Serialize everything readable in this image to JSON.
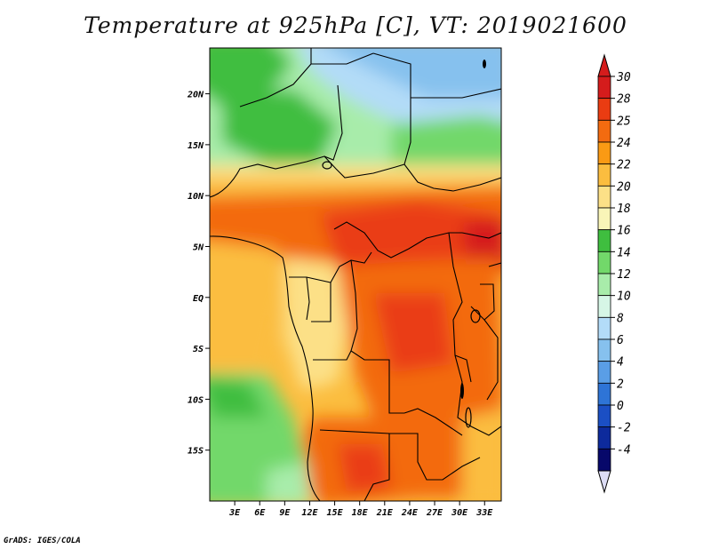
{
  "title": "Temperature at 925hPa [C], VT: 2019021600",
  "credit": "GrADS: IGES/COLA",
  "map": {
    "lat_ticks": [
      "20N",
      "15N",
      "10N",
      "5N",
      "EQ",
      "5S",
      "10S",
      "15S"
    ],
    "lat_values": [
      20,
      15,
      10,
      5,
      0,
      -5,
      -10,
      -15
    ],
    "lon_ticks": [
      "3E",
      "6E",
      "9E",
      "12E",
      "15E",
      "18E",
      "21E",
      "24E",
      "27E",
      "30E",
      "33E"
    ],
    "lon_values": [
      3,
      6,
      9,
      12,
      15,
      18,
      21,
      24,
      27,
      30,
      33
    ],
    "lon_range": [
      0,
      35
    ],
    "lat_range": [
      -20,
      24.5
    ]
  },
  "colorbar": {
    "levels": [
      "30",
      "28",
      "25",
      "24",
      "22",
      "20",
      "18",
      "16",
      "14",
      "12",
      "10",
      "8",
      "6",
      "4",
      "2",
      "0",
      "-2",
      "-4"
    ],
    "colors": [
      "#d51c1c",
      "#ea3c12",
      "#f36b10",
      "#fa9a14",
      "#fbbd3f",
      "#fce087",
      "#f9f5b8",
      "#3fbe3f",
      "#72d86a",
      "#a8ecaa",
      "#d6f6e6",
      "#b3dcf8",
      "#86c1ee",
      "#5a9ee6",
      "#2e74d6",
      "#1b4fc4",
      "#0d2a9c",
      "#07086a"
    ],
    "min_arrow_color": "#ddddf6"
  }
}
